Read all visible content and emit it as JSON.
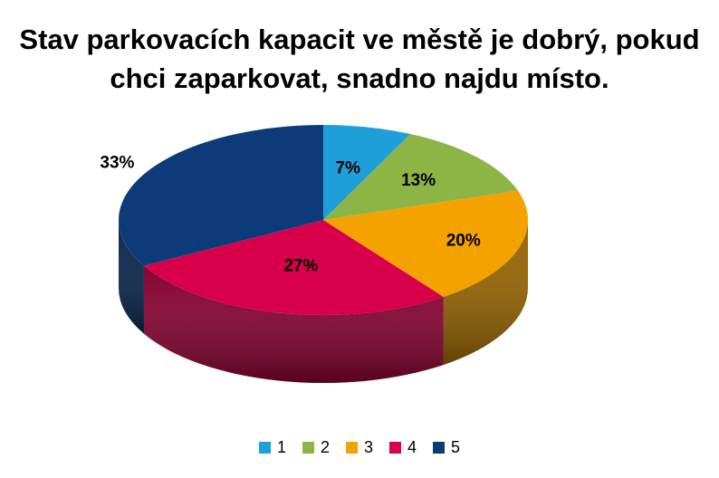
{
  "chart_data": {
    "type": "pie",
    "title_lines": [
      "Stav parkovacích kapacit ve městě je dobrý, pokud",
      "chci zaparkovat, snadno najdu místo."
    ],
    "categories": [
      "1",
      "2",
      "3",
      "4",
      "5"
    ],
    "values": [
      7,
      13,
      20,
      27,
      33
    ],
    "labels": [
      "7%",
      "13%",
      "20%",
      "27%",
      "33%"
    ],
    "colors": [
      "#1f9fd8",
      "#8db545",
      "#f3a200",
      "#d8004b",
      "#0d3b7a"
    ],
    "legend_position": "bottom",
    "style": "3d"
  }
}
